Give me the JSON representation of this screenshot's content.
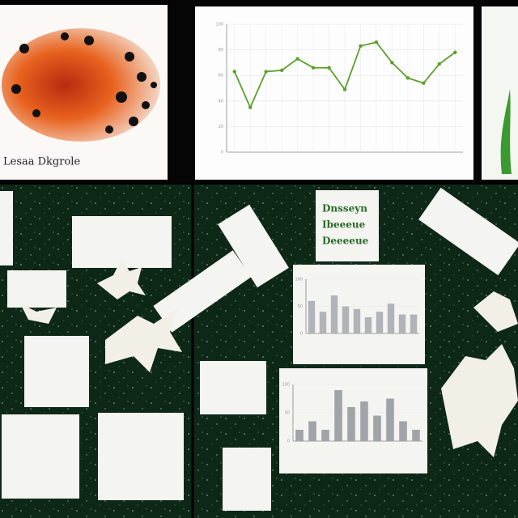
{
  "notes": {
    "top_left_caption": "Lesaa Dkgrole",
    "board_note": [
      "Dnsseyn",
      "Ibeeeue",
      "Deeeeue"
    ]
  },
  "chart_data": [
    {
      "type": "line",
      "color": "#5aa02c",
      "values": [
        63,
        35,
        63,
        64,
        73,
        66,
        66,
        49,
        83,
        86,
        70,
        58,
        54,
        69,
        78
      ],
      "ylim": [
        0,
        100
      ],
      "yticks": [
        0,
        20,
        40,
        60,
        80,
        100
      ],
      "grid": true
    },
    {
      "type": "bar",
      "color": "#b0b4b8",
      "values": [
        60,
        40,
        70,
        50,
        45,
        30,
        40,
        55,
        35,
        35
      ],
      "ylim": [
        0,
        100
      ],
      "yticks": [
        0,
        50,
        100
      ],
      "grid": true
    },
    {
      "type": "bar",
      "color": "#a0a4a8",
      "values": [
        20,
        35,
        20,
        90,
        60,
        70,
        45,
        75,
        35,
        20
      ],
      "ylim": [
        0,
        100
      ],
      "yticks": [
        0,
        50,
        100
      ],
      "grid": true
    }
  ]
}
